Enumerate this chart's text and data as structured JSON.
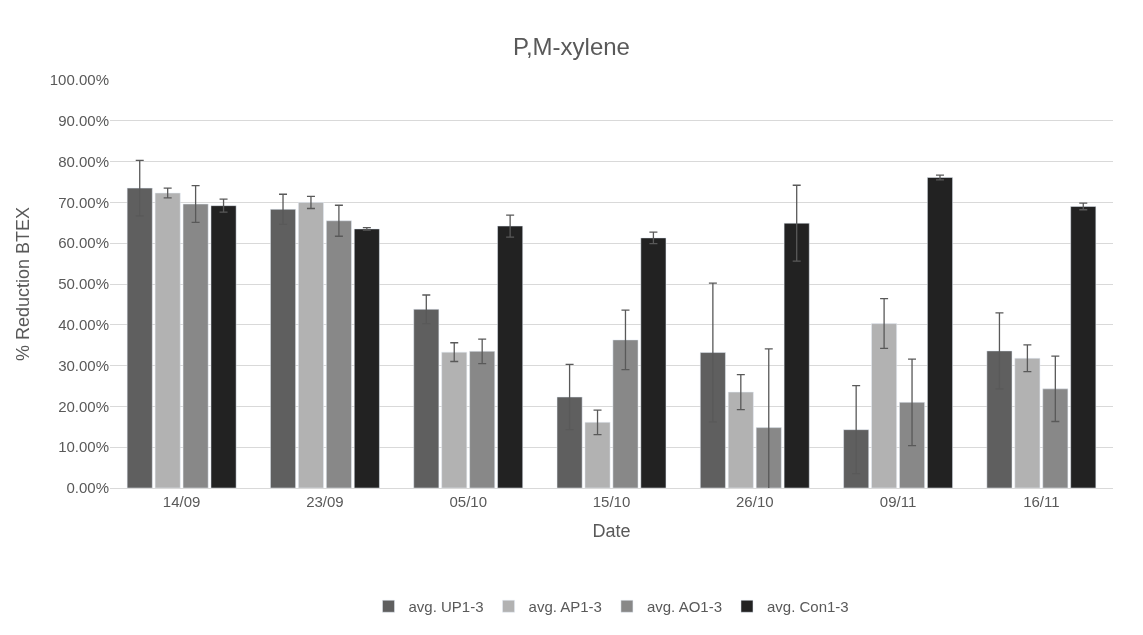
{
  "chart_data": {
    "type": "bar",
    "title": "P,M-xylene",
    "xlabel": "Date",
    "ylabel": "% Reduction BTEX",
    "categories": [
      "14/09",
      "23/09",
      "05/10",
      "15/10",
      "26/10",
      "09/11",
      "16/11"
    ],
    "series": [
      {
        "name": "avg. UP1-3",
        "color": "#5f5f5f",
        "values": [
          73.5,
          68.3,
          43.8,
          22.3,
          33.2,
          14.3,
          33.6
        ],
        "errors": [
          6.8,
          3.7,
          3.5,
          8.0,
          17.0,
          10.8,
          9.3
        ]
      },
      {
        "name": "avg. AP1-3",
        "color": "#b2b2b2",
        "values": [
          72.3,
          70.0,
          33.3,
          16.1,
          23.5,
          40.3,
          31.8
        ],
        "errors": [
          1.2,
          1.5,
          2.3,
          3.0,
          4.3,
          6.1,
          3.3
        ]
      },
      {
        "name": "avg. AO1-3",
        "color": "#888888",
        "values": [
          69.6,
          65.5,
          33.5,
          36.3,
          14.8,
          21.0,
          24.3
        ],
        "errors": [
          4.5,
          3.8,
          3.0,
          7.3,
          19.3,
          10.6,
          8.0
        ]
      },
      {
        "name": "avg. Con1-3",
        "color": "#222222",
        "values": [
          69.2,
          63.5,
          64.2,
          61.3,
          64.9,
          76.1,
          69.0
        ],
        "errors": [
          1.6,
          0.3,
          2.7,
          1.4,
          9.3,
          0.6,
          0.8
        ]
      }
    ],
    "ylim": [
      0,
      100
    ],
    "yticks": [
      {
        "value": 0,
        "label": "0.00%"
      },
      {
        "value": 10,
        "label": "10.00%"
      },
      {
        "value": 20,
        "label": "20.00%"
      },
      {
        "value": 30,
        "label": "30.00%"
      },
      {
        "value": 40,
        "label": "40.00%"
      },
      {
        "value": 50,
        "label": "50.00%"
      },
      {
        "value": 60,
        "label": "60.00%"
      },
      {
        "value": 70,
        "label": "70.00%"
      },
      {
        "value": 80,
        "label": "80.00%"
      },
      {
        "value": 90,
        "label": "90.00%"
      },
      {
        "value": 100,
        "label": "100.00%"
      }
    ],
    "grid": "y",
    "legend": "bottom"
  }
}
